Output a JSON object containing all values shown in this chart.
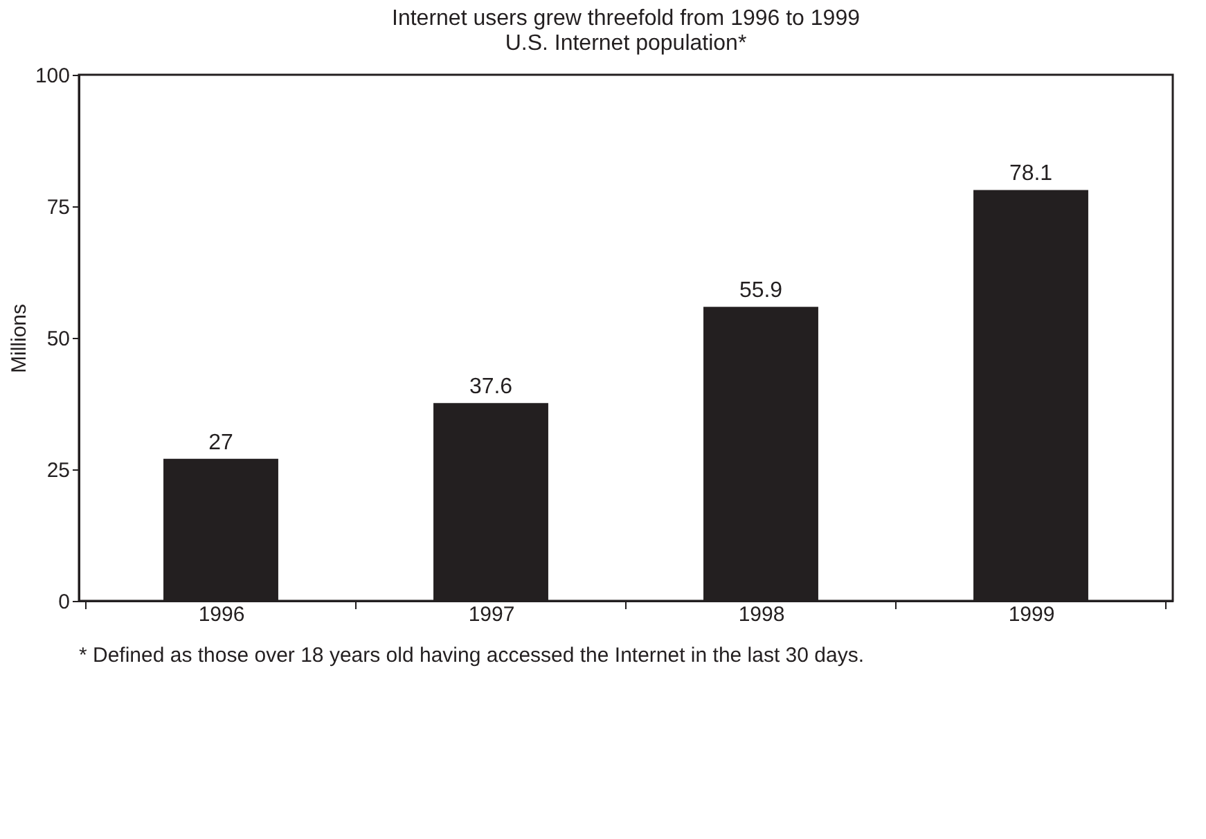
{
  "chart_data": {
    "type": "bar",
    "title": "Internet users grew threefold from 1996 to 1999",
    "subtitle": "U.S. Internet population*",
    "ylabel": "Millions",
    "categories": [
      "1996",
      "1997",
      "1998",
      "1999"
    ],
    "values": [
      27,
      37.6,
      55.9,
      78.1
    ],
    "color": "#231f20",
    "ylim": [
      0,
      100
    ],
    "yticks": [
      0,
      25,
      50,
      75,
      100
    ],
    "grid": false,
    "data_labels": true,
    "annotations": [
      "* Defined as those over 18 years old having accessed the Internet in the last 30 days."
    ]
  }
}
